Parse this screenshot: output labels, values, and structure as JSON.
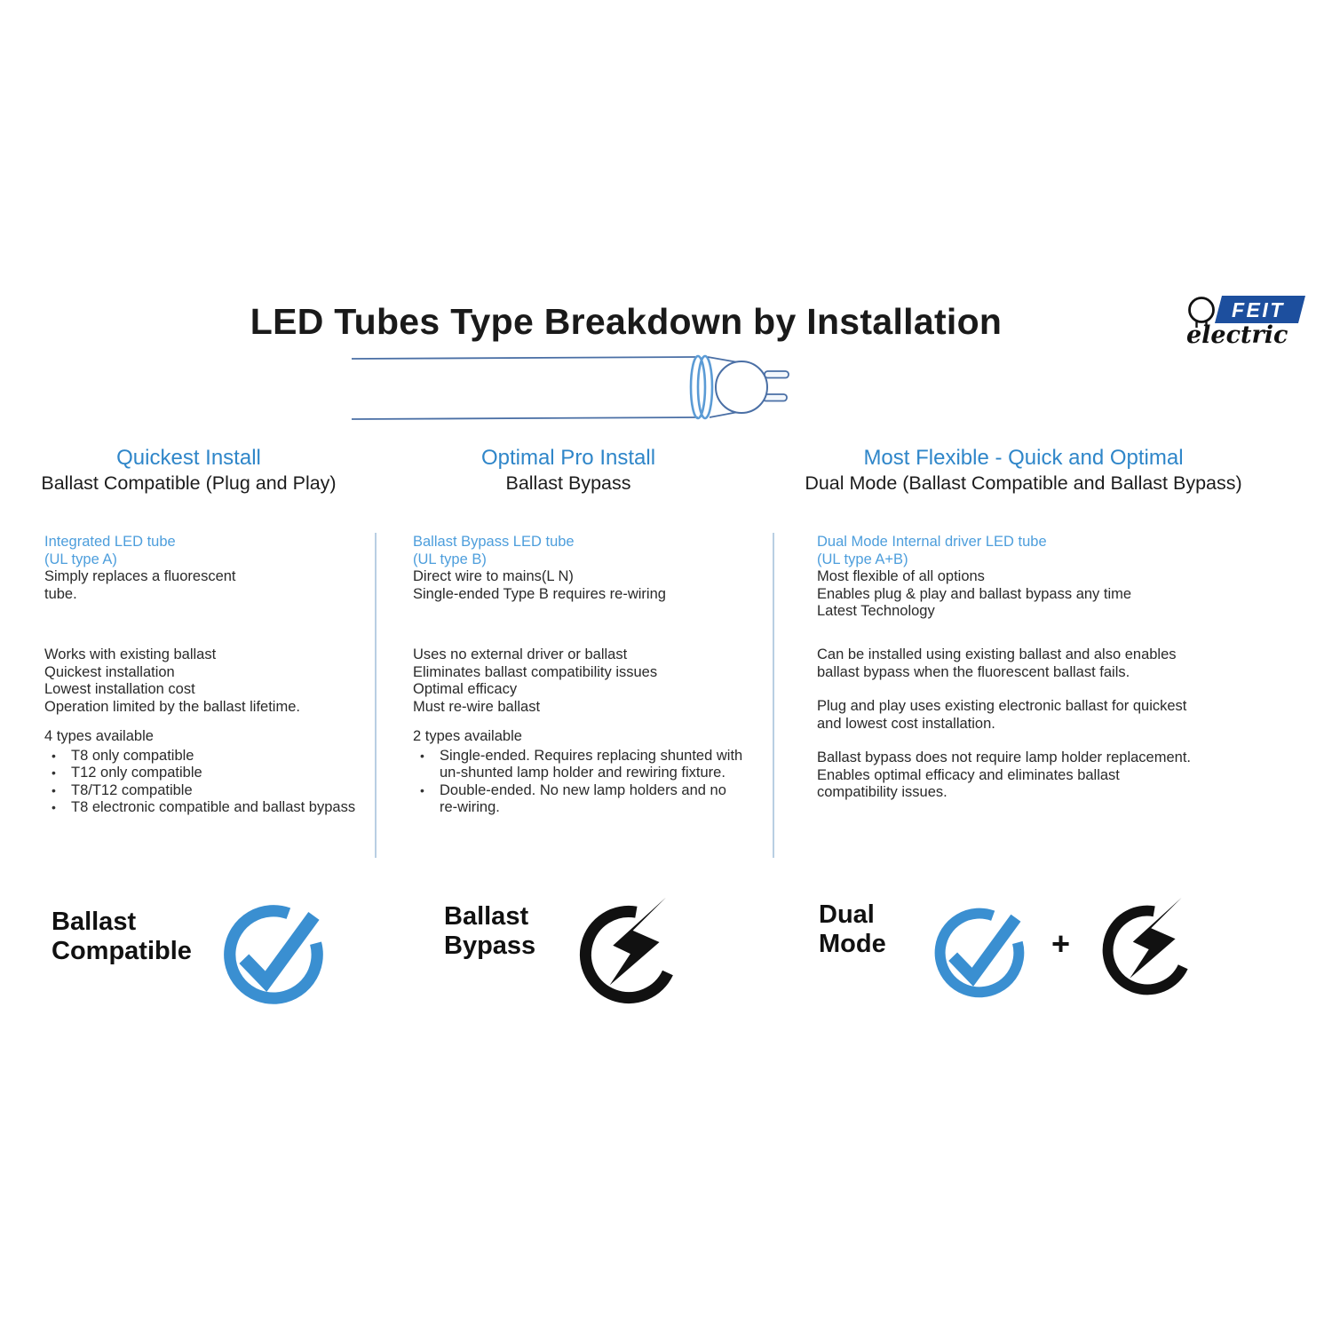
{
  "title": "LED Tubes Type Breakdown by Installation",
  "logo": {
    "brand": "FEIT",
    "sub": "electric"
  },
  "colors": {
    "header_blue": "#2f86c9",
    "label_blue": "#4d9edc",
    "icon_blue": "#3a8fd1",
    "logo_blue": "#1d4f9e",
    "divider": "#b9cfe3",
    "text_black": "#1f1f1f"
  },
  "columns": [
    {
      "header": "Quickest Install",
      "subheader": "Ballast Compatible (Plug and Play)",
      "tube_type": "Integrated LED tube\n(UL type A)",
      "tube_desc": "Simply replaces a fluorescent\ntube.",
      "features": "Works with existing ballast\nQuickest installation\nLowest installation cost\nOperation limited by the ballast lifetime.",
      "types_title": "4 types available",
      "types": [
        "T8 only compatible",
        "T12 only compatible",
        "T8/T12 compatible",
        "T8 electronic compatible and ballast bypass"
      ],
      "badge_label": "Ballast\nCompatible",
      "badge_icons": [
        "check-circle"
      ]
    },
    {
      "header": "Optimal Pro Install",
      "subheader": "Ballast Bypass",
      "tube_type": "Ballast Bypass LED tube\n(UL type B)",
      "tube_desc": "Direct wire to mains(L N)\nSingle-ended Type B requires re-wiring",
      "features": "Uses no external driver or ballast\nEliminates ballast compatibility issues\nOptimal efficacy\nMust re-wire ballast",
      "types_title": "2 types available",
      "types": [
        "Single-ended.  Requires replacing shunted with un-shunted lamp holder and rewiring fixture.",
        "Double-ended.  No new lamp holders and no re-wiring."
      ],
      "badge_label": "Ballast\nBypass",
      "badge_icons": [
        "bolt-circle"
      ]
    },
    {
      "header": "Most Flexible - Quick and Optimal",
      "subheader": "Dual Mode (Ballast Compatible and Ballast Bypass)",
      "tube_type": "Dual Mode Internal driver LED tube\n(UL type A+B)",
      "tube_desc": "Most flexible of all options\nEnables plug & play and ballast bypass any time\nLatest Technology",
      "paragraphs": [
        "Can be installed using existing ballast and also enables\nballast bypass when the fluorescent ballast fails.",
        "Plug and play uses existing electronic ballast for quickest\nand lowest cost installation.",
        "Ballast bypass does not require lamp holder replacement.\nEnables optimal efficacy and eliminates ballast\ncompatibility issues."
      ],
      "badge_label": "Dual\nMode",
      "badge_plus": "+",
      "badge_icons": [
        "check-circle",
        "plus",
        "bolt-circle"
      ]
    }
  ]
}
